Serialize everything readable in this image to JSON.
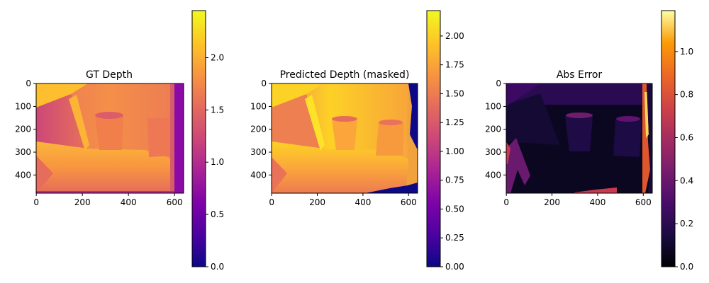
{
  "chart_data": [
    {
      "type": "heatmap",
      "title": "GT Depth",
      "image_width": 640,
      "image_height": 480,
      "x_ticks": [
        0,
        200,
        400,
        600
      ],
      "y_ticks": [
        0,
        100,
        200,
        300,
        400
      ],
      "colormap": "plasma",
      "colorbar": {
        "min": 0.0,
        "max": 2.45,
        "ticks": [
          0.0,
          0.5,
          1.0,
          1.5,
          2.0
        ],
        "tick_labels": [
          "0.0",
          "0.5",
          "1.0",
          "1.5",
          "2.0"
        ]
      }
    },
    {
      "type": "heatmap",
      "title": "Predicted Depth (masked)",
      "image_width": 640,
      "image_height": 480,
      "x_ticks": [
        0,
        200,
        400,
        600
      ],
      "y_ticks": [
        0,
        100,
        200,
        300,
        400
      ],
      "colormap": "plasma",
      "colorbar": {
        "min": 0.0,
        "max": 2.22,
        "ticks": [
          0.0,
          0.25,
          0.5,
          0.75,
          1.0,
          1.25,
          1.5,
          1.75,
          2.0
        ],
        "tick_labels": [
          "0.00",
          "0.25",
          "0.50",
          "0.75",
          "1.00",
          "1.25",
          "1.50",
          "1.75",
          "2.00"
        ]
      }
    },
    {
      "type": "heatmap",
      "title": "Abs Error",
      "image_width": 640,
      "image_height": 480,
      "x_ticks": [
        0,
        200,
        400,
        600
      ],
      "y_ticks": [
        0,
        100,
        200,
        300,
        400
      ],
      "colormap": "inferno",
      "colorbar": {
        "min": 0.0,
        "max": 1.19,
        "ticks": [
          0.0,
          0.2,
          0.4,
          0.6,
          0.8,
          1.0
        ],
        "tick_labels": [
          "0.0",
          "0.2",
          "0.4",
          "0.6",
          "0.8",
          "1.0"
        ]
      }
    }
  ]
}
